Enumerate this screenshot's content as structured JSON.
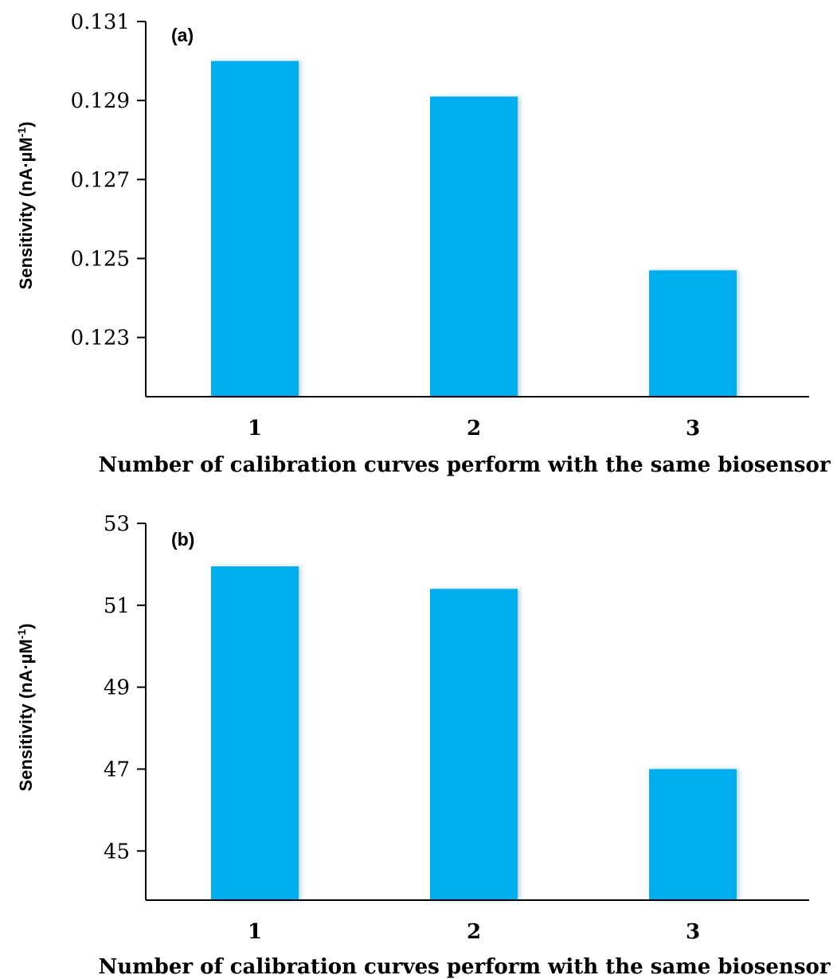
{
  "chart_data": [
    {
      "type": "bar",
      "panel_label": "(a)",
      "categories": [
        "1",
        "2",
        "3"
      ],
      "values": [
        0.13,
        0.1291,
        0.1247
      ],
      "ylim": [
        0.1215,
        0.131
      ],
      "yticks": [
        "0.123",
        "0.125",
        "0.127",
        "0.129",
        "0.131"
      ],
      "ytick_values": [
        0.123,
        0.125,
        0.127,
        0.129,
        0.131
      ],
      "xlabel": "Number of calibration curves perform with the same biosensor",
      "ylabel": "Sensitivity (nA·µM",
      "ylabel_sup": "-1",
      "ylabel_close": ")",
      "bar_color": "#00AEEF",
      "grid": false
    },
    {
      "type": "bar",
      "panel_label": "(b)",
      "categories": [
        "1",
        "2",
        "3"
      ],
      "values": [
        51.95,
        51.4,
        47.0
      ],
      "ylim": [
        43.8,
        53.0
      ],
      "yticks": [
        "45",
        "47",
        "49",
        "51",
        "53"
      ],
      "ytick_values": [
        45,
        47,
        49,
        51,
        53
      ],
      "xlabel": "Number of calibration curves perform with the same biosensor",
      "ylabel": "Sensitivity (nA·µM",
      "ylabel_sup": "-1",
      "ylabel_close": ")",
      "bar_color": "#00AEEF",
      "grid": false
    }
  ]
}
